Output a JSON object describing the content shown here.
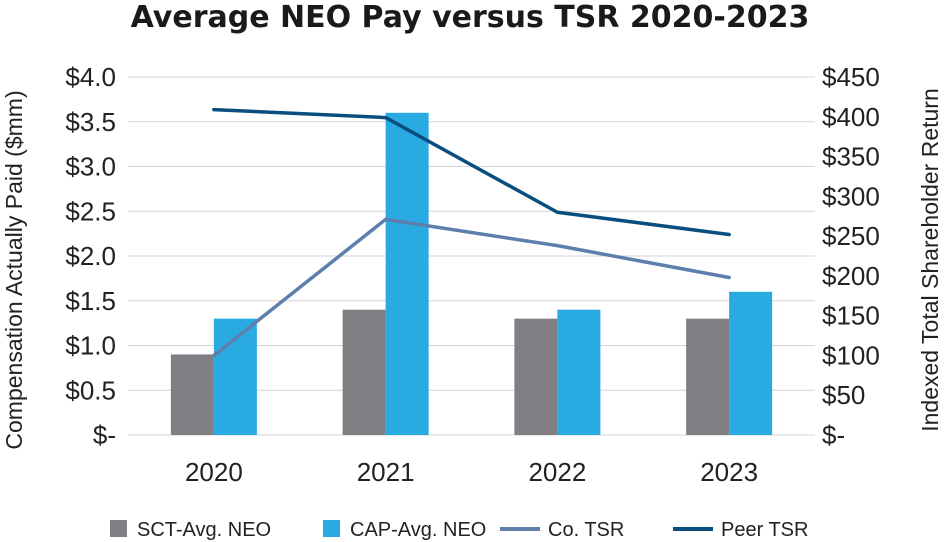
{
  "chart_data": {
    "type": "bar",
    "title": "Average NEO Pay versus TSR 2020-2023",
    "categories": [
      "2020",
      "2021",
      "2022",
      "2023"
    ],
    "ylabel": "Compensation Actually Paid ($mm)",
    "y2label": "Indexed Total Shareholder Return",
    "ylim": [
      0,
      4.0
    ],
    "y2lim": [
      0,
      450
    ],
    "yticks": [
      "$-",
      "$0.5",
      "$1.0",
      "$1.5",
      "$2.0",
      "$2.5",
      "$3.0",
      "$3.5",
      "$4.0"
    ],
    "y2ticks": [
      "$-",
      "$50",
      "$100",
      "$150",
      "$200",
      "$250",
      "$300",
      "$350",
      "$400",
      "$450"
    ],
    "series": [
      {
        "name": "SCT-Avg. NEO",
        "type": "bar",
        "axis": "left",
        "color": "#808084",
        "values": [
          0.9,
          1.4,
          1.3,
          1.3
        ]
      },
      {
        "name": "CAP-Avg. NEO",
        "type": "bar",
        "axis": "left",
        "color": "#29ABE2",
        "values": [
          1.3,
          3.6,
          1.4,
          1.6
        ]
      },
      {
        "name": "Co. TSR",
        "type": "line",
        "axis": "right",
        "color": "#5E7FAE",
        "values": [
          100,
          271,
          238,
          198
        ]
      },
      {
        "name": "Peer TSR",
        "type": "line",
        "axis": "right",
        "color": "#0A4E80",
        "values": [
          409,
          399,
          280,
          252
        ]
      }
    ],
    "legend_position": "bottom"
  }
}
